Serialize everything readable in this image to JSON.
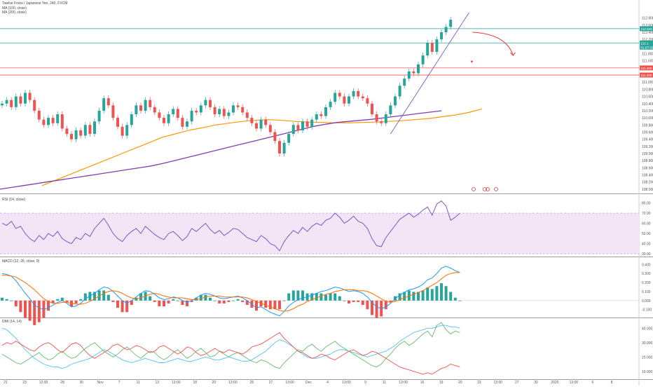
{
  "header": {
    "title": "Twelve Forex / Japanese Yen, 240, FXCM",
    "ma1_label": "MA (100, close)",
    "ma2_label": "MA (200, close)"
  },
  "panes": {
    "rsi_label": "RSI (14, close)",
    "macd_label": "MACD (12, 26, close, 9)",
    "dmi_label": "DMI (14, 14)"
  },
  "colors": {
    "background": "#ffffff",
    "up_candle": "#26a69a",
    "down_candle": "#ef5350",
    "ma100": "#ff9800",
    "ma200": "#7e3fae",
    "rsi": "#7e57c2",
    "rsi_band": "#f3e5f5",
    "macd": "#2196f3",
    "signal": "#ff6d00",
    "dmi_plus": "#26a69a",
    "dmi_minus": "#ef5350",
    "adx": "#4fc3f7",
    "resistance": "#ef5350",
    "level": "#26a69a",
    "trendline": "#7e57c2",
    "arrow": "#e53935"
  },
  "price_axis": {
    "ticks": [
      "112.800",
      "112.600",
      "112.400",
      "112.200",
      "112.000",
      "111.800",
      "111.600",
      "111.400",
      "111.200",
      "111.000",
      "110.800",
      "110.600",
      "110.400",
      "110.200",
      "110.000",
      "109.800",
      "109.600",
      "109.400",
      "109.200",
      "109.000",
      "108.800",
      "108.600",
      "108.400",
      "108.200",
      "108.000"
    ],
    "tags": [
      {
        "text": "112.500",
        "kind": "level"
      },
      {
        "text": "112.1",
        "kind": "level"
      },
      {
        "text": "01:07:32",
        "kind": "level"
      },
      {
        "text": "111.400",
        "kind": "resistance"
      },
      {
        "text": "111.200",
        "kind": "resistance"
      }
    ]
  },
  "rsi_axis": {
    "ticks": [
      "80.00",
      "70.00",
      "60.00",
      "50.00",
      "40.00",
      "30.00"
    ]
  },
  "macd_axis": {
    "ticks": [
      "0.400",
      "0.300",
      "0.200",
      "0.100",
      "0.000",
      "-0.100"
    ]
  },
  "dmi_axis": {
    "ticks": [
      "40.000",
      "30.000",
      "20.000",
      "10.000"
    ]
  },
  "time_axis": {
    "labels": [
      "21",
      "23",
      "12:00",
      "28",
      "30",
      "Nov",
      "7",
      "11",
      "13",
      "13:00",
      "18",
      "20",
      "13:00",
      "25",
      "27",
      "13:00",
      "Dec",
      "4",
      "13:00",
      "9",
      "11",
      "13:00",
      "16",
      "19",
      "20",
      "23",
      "13:00",
      "27",
      "30",
      "2020",
      "13:00",
      "6",
      "8"
    ]
  },
  "chart_data": [
    {
      "type": "candlestick",
      "title": "Twelve Forex / Japanese Yen, 240, FXCM",
      "yrange": [
        107.9,
        112.95
      ],
      "close": [
        110.4,
        110.5,
        110.3,
        110.6,
        110.4,
        110.7,
        110.5,
        110.2,
        109.95,
        109.8,
        110.0,
        109.85,
        110.1,
        109.7,
        109.55,
        109.4,
        109.65,
        109.5,
        109.8,
        109.55,
        109.9,
        110.2,
        110.55,
        110.35,
        110.0,
        109.75,
        109.5,
        109.8,
        110.1,
        110.35,
        110.2,
        110.5,
        110.3,
        110.15,
        110.0,
        109.85,
        110.1,
        110.25,
        110.0,
        109.75,
        109.9,
        110.2,
        110.15,
        110.35,
        110.5,
        110.3,
        110.1,
        110.25,
        110.05,
        110.15,
        110.35,
        110.3,
        110.15,
        110.0,
        109.85,
        109.7,
        109.95,
        109.8,
        109.6,
        109.35,
        109.0,
        109.3,
        109.55,
        109.8,
        109.65,
        109.9,
        109.75,
        109.95,
        110.1,
        110.05,
        110.3,
        110.45,
        110.7,
        110.6,
        110.4,
        110.6,
        110.75,
        110.6,
        110.55,
        110.4,
        110.1,
        109.9,
        109.85,
        110.1,
        110.35,
        110.6,
        110.9,
        111.1,
        111.3,
        111.25,
        111.5,
        111.75,
        112.1,
        111.85,
        112.2,
        112.4,
        112.55,
        112.75
      ],
      "open_first": 110.35,
      "levels": [
        {
          "value": 112.5,
          "label": "112.500"
        },
        {
          "value": 112.1,
          "label": "112.1"
        },
        {
          "value": 111.4,
          "label": "111.400"
        },
        {
          "value": 111.2,
          "label": "111.200"
        }
      ],
      "ma100": [
        108.1,
        108.25,
        108.4,
        108.55,
        108.7,
        108.85,
        109.0,
        109.15,
        109.3,
        109.45,
        109.55,
        109.65,
        109.72,
        109.8,
        109.85,
        109.9,
        109.93,
        109.95,
        109.93,
        109.9,
        109.88,
        109.87,
        109.86,
        109.86,
        109.87,
        109.88,
        109.9,
        109.92,
        109.95,
        109.98,
        110.03,
        110.08,
        110.15,
        110.25
      ],
      "ma200": [
        108.0,
        108.05,
        108.1,
        108.15,
        108.2,
        108.25,
        108.3,
        108.35,
        108.4,
        108.45,
        108.5,
        108.55,
        108.6,
        108.65,
        108.72,
        108.8,
        108.88,
        108.96,
        109.04,
        109.12,
        109.2,
        109.28,
        109.36,
        109.44,
        109.52,
        109.6,
        109.68,
        109.76,
        109.82,
        109.87,
        109.9,
        109.93,
        109.96,
        110.0,
        110.04,
        110.08,
        110.12,
        110.16,
        110.2
      ],
      "annotations": [
        "trendline",
        "curved-arrow-down",
        "down-arrow"
      ]
    },
    {
      "type": "line",
      "title": "RSI (14, close)",
      "ylim": [
        28,
        88
      ],
      "band": [
        30,
        70
      ],
      "values": [
        60,
        58,
        62,
        55,
        57,
        50,
        45,
        42,
        48,
        44,
        50,
        47,
        52,
        45,
        42,
        40,
        46,
        44,
        50,
        47,
        55,
        60,
        65,
        58,
        50,
        45,
        42,
        48,
        52,
        55,
        50,
        57,
        53,
        49,
        46,
        44,
        50,
        52,
        48,
        43,
        47,
        55,
        52,
        56,
        60,
        54,
        50,
        53,
        48,
        51,
        55,
        54,
        50,
        46,
        44,
        42,
        48,
        45,
        40,
        38,
        33,
        42,
        48,
        53,
        50,
        56,
        52,
        57,
        60,
        58,
        63,
        65,
        70,
        66,
        60,
        63,
        67,
        62,
        60,
        55,
        45,
        38,
        37,
        46,
        52,
        58,
        64,
        67,
        70,
        66,
        69,
        73,
        76,
        68,
        79,
        82,
        77,
        63,
        66,
        70
      ]
    },
    {
      "type": "line",
      "title": "MACD (12, 26, close, 9)",
      "ylim": [
        -0.18,
        0.48
      ],
      "macd": [
        0.3,
        0.29,
        0.27,
        0.22,
        0.15,
        0.08,
        0.02,
        -0.05,
        -0.08,
        -0.1,
        -0.08,
        -0.05,
        -0.02,
        0.0,
        -0.03,
        -0.07,
        -0.06,
        -0.03,
        0.02,
        0.05,
        0.08,
        0.12,
        0.15,
        0.14,
        0.1,
        0.05,
        0.0,
        -0.03,
        0.0,
        0.04,
        0.08,
        0.11,
        0.1,
        0.07,
        0.03,
        0.01,
        0.02,
        0.04,
        0.03,
        0.0,
        -0.02,
        0.0,
        0.03,
        0.06,
        0.08,
        0.07,
        0.05,
        0.03,
        0.02,
        0.03,
        0.04,
        0.05,
        0.03,
        0.0,
        -0.04,
        -0.08,
        -0.07,
        -0.1,
        -0.13,
        -0.15,
        -0.17,
        -0.12,
        -0.06,
        -0.02,
        0.01,
        0.03,
        0.04,
        0.06,
        0.08,
        0.1,
        0.11,
        0.13,
        0.15,
        0.14,
        0.12,
        0.1,
        0.11,
        0.1,
        0.08,
        0.04,
        -0.02,
        -0.07,
        -0.09,
        -0.07,
        -0.03,
        0.02,
        0.06,
        0.09,
        0.12,
        0.13,
        0.15,
        0.18,
        0.23,
        0.25,
        0.3,
        0.36,
        0.38,
        0.36,
        0.33,
        0.31
      ],
      "signal": [
        0.28,
        0.28,
        0.27,
        0.26,
        0.23,
        0.2,
        0.16,
        0.12,
        0.07,
        0.02,
        -0.01,
        -0.03,
        -0.03,
        -0.02,
        -0.02,
        -0.03,
        -0.04,
        -0.04,
        -0.03,
        -0.01,
        0.02,
        0.05,
        0.08,
        0.1,
        0.11,
        0.1,
        0.08,
        0.05,
        0.03,
        0.02,
        0.03,
        0.05,
        0.07,
        0.08,
        0.07,
        0.05,
        0.04,
        0.03,
        0.03,
        0.03,
        0.02,
        0.01,
        0.01,
        0.02,
        0.04,
        0.05,
        0.05,
        0.05,
        0.04,
        0.04,
        0.04,
        0.04,
        0.04,
        0.03,
        0.01,
        -0.01,
        -0.03,
        -0.05,
        -0.07,
        -0.09,
        -0.11,
        -0.12,
        -0.11,
        -0.09,
        -0.06,
        -0.04,
        -0.01,
        0.01,
        0.03,
        0.05,
        0.07,
        0.08,
        0.1,
        0.11,
        0.12,
        0.12,
        0.12,
        0.11,
        0.11,
        0.1,
        0.08,
        0.05,
        0.02,
        -0.01,
        -0.02,
        -0.01,
        0.01,
        0.03,
        0.05,
        0.07,
        0.09,
        0.11,
        0.14,
        0.17,
        0.2,
        0.24,
        0.28,
        0.3,
        0.31,
        0.31
      ]
    },
    {
      "type": "line",
      "title": "DMI (14, 14)",
      "ylim": [
        5,
        47
      ],
      "plus_di": [
        22,
        20,
        18,
        16,
        15,
        17,
        19,
        21,
        23,
        20,
        18,
        19,
        22,
        24,
        21,
        19,
        20,
        23,
        26,
        28,
        30,
        27,
        24,
        22,
        20,
        22,
        25,
        27,
        24,
        21,
        19,
        22,
        24,
        23,
        20,
        18,
        20,
        23,
        25,
        22,
        19,
        21,
        24,
        26,
        23,
        20,
        21,
        24,
        22,
        20,
        22,
        23,
        21,
        19,
        17,
        16,
        18,
        17,
        15,
        13,
        12,
        16,
        19,
        22,
        25,
        24,
        27,
        29,
        26,
        24,
        27,
        29,
        31,
        28,
        26,
        24,
        22,
        20,
        18,
        16,
        14,
        13,
        15,
        19,
        22,
        26,
        29,
        31,
        28,
        30,
        33,
        36,
        38,
        34,
        42,
        44,
        39,
        36,
        38,
        37
      ],
      "minus_di": [
        28,
        30,
        29,
        31,
        29,
        27,
        25,
        24,
        27,
        29,
        30,
        28,
        25,
        23,
        26,
        29,
        30,
        28,
        24,
        21,
        19,
        21,
        23,
        25,
        28,
        29,
        27,
        25,
        26,
        28,
        27,
        25,
        23,
        24,
        27,
        28,
        26,
        24,
        22,
        24,
        27,
        26,
        23,
        21,
        22,
        24,
        26,
        24,
        23,
        25,
        24,
        23,
        22,
        24,
        27,
        28,
        29,
        31,
        33,
        35,
        37,
        33,
        30,
        27,
        24,
        23,
        21,
        19,
        20,
        22,
        21,
        19,
        18,
        20,
        22,
        24,
        25,
        23,
        21,
        22,
        24,
        23,
        21,
        19,
        17,
        15,
        13,
        12,
        11,
        10,
        9,
        8,
        9,
        8,
        10,
        12,
        13,
        15,
        14,
        13
      ],
      "adx": [
        40,
        39,
        36,
        33,
        29,
        25,
        22,
        19,
        17,
        15,
        14,
        13,
        13,
        12,
        13,
        15,
        16,
        17,
        18,
        19,
        21,
        23,
        25,
        24,
        22,
        20,
        18,
        17,
        16,
        17,
        18,
        19,
        18,
        17,
        16,
        16,
        17,
        18,
        19,
        18,
        17,
        17,
        18,
        19,
        20,
        19,
        18,
        18,
        19,
        20,
        19,
        18,
        17,
        17,
        18,
        20,
        22,
        24,
        27,
        30,
        32,
        31,
        29,
        27,
        24,
        22,
        20,
        19,
        19,
        20,
        21,
        22,
        24,
        25,
        25,
        24,
        23,
        22,
        21,
        20,
        21,
        22,
        23,
        24,
        26,
        28,
        31,
        33,
        35,
        37,
        38,
        39,
        40,
        40,
        41,
        42,
        42,
        41,
        41,
        40
      ]
    }
  ]
}
